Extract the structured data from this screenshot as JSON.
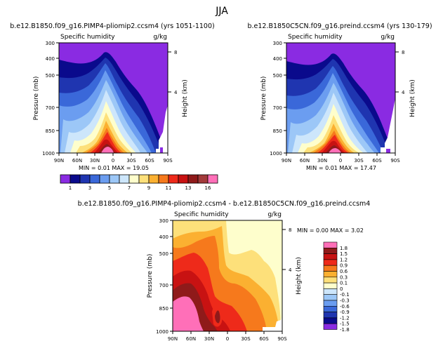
{
  "page_title": "JJA",
  "chart_data": [
    {
      "type": "contour",
      "title": "b.e12.B1850.f09_g16.PIMP4-pliomip2.ccsm4 (yrs 1051-1100)",
      "left_label": "Specific humidity",
      "right_label": "g/kg",
      "ylabel": "Pressure (mb)",
      "ylabel_right": "Height (km)",
      "x_ticks": [
        "90N",
        "60N",
        "30N",
        "0",
        "30S",
        "60S",
        "90S"
      ],
      "y_ticks": [
        "300",
        "400",
        "500",
        "700",
        "850",
        "1000"
      ],
      "height_ticks": [
        "8",
        "4"
      ],
      "xlim": [
        90,
        -90
      ],
      "ylim": [
        1000,
        300
      ],
      "stats_text": "MIN = 0.01 MAX = 19.05",
      "min": 0.01,
      "max": 19.05
    },
    {
      "type": "contour",
      "title": "b.e12.B1850C5CN.f09_g16.preind.ccsm4 (yrs 130-179)",
      "left_label": "Specific humidity",
      "right_label": "g/kg",
      "ylabel": "Pressure (mb)",
      "ylabel_right": "Height (km)",
      "x_ticks": [
        "90N",
        "60N",
        "30N",
        "0",
        "30S",
        "60S",
        "90S"
      ],
      "y_ticks": [
        "300",
        "400",
        "500",
        "700",
        "850",
        "1000"
      ],
      "height_ticks": [
        "8",
        "4"
      ],
      "xlim": [
        90,
        -90
      ],
      "ylim": [
        1000,
        300
      ],
      "stats_text": "MIN = 0.01 MAX = 17.47",
      "min": 0.01,
      "max": 17.47
    },
    {
      "type": "contour",
      "title": "b.e12.B1850.f09_g16.PIMP4-pliomip2.ccsm4 - b.e12.B1850C5CN.f09_g16.preind.ccsm4",
      "left_label": "Specific humidity",
      "right_label": "g/kg",
      "ylabel": "Pressure (mb)",
      "ylabel_right": "Height (km)",
      "x_ticks": [
        "90N",
        "60N",
        "30N",
        "0",
        "30S",
        "60S",
        "90S"
      ],
      "y_ticks": [
        "300",
        "400",
        "500",
        "700",
        "850",
        "1000"
      ],
      "height_ticks": [
        "8",
        "4"
      ],
      "xlim": [
        90,
        -90
      ],
      "ylim": [
        1000,
        300
      ],
      "stats_text": "MIN = 0.00 MAX = 3.02",
      "min": 0.0,
      "max": 3.02
    }
  ],
  "colorbar_main": {
    "labels": [
      "1",
      "3",
      "5",
      "7",
      "9",
      "11",
      "13",
      "16"
    ],
    "colors": [
      "#8a2be2",
      "#0a0a8c",
      "#1f35b0",
      "#3a68d9",
      "#6b9df0",
      "#9cc7f7",
      "#cde6fb",
      "#fefecc",
      "#fde07a",
      "#fbb031",
      "#f6791c",
      "#ee2a1a",
      "#c81212",
      "#8f1a1a",
      "#a23a3a",
      "#ff6fb8"
    ]
  },
  "colorbar_diff": {
    "labels": [
      "1.8",
      "1.5",
      "1.2",
      "0.9",
      "0.6",
      "0.3",
      "0.1",
      "0",
      "-0.1",
      "-0.3",
      "-0.6",
      "-0.9",
      "-1.2",
      "-1.5",
      "-1.8"
    ],
    "colors": [
      "#ff6fb8",
      "#8f1a1a",
      "#c81212",
      "#ee2a1a",
      "#f6791c",
      "#fbb031",
      "#fde07a",
      "#fefecc",
      "#cde6fb",
      "#9cc7f7",
      "#6b9df0",
      "#3a68d9",
      "#1f35b0",
      "#0a0a8c",
      "#8a2be2"
    ]
  },
  "palette": {
    "purple": "#8a2be2",
    "navy": "#0a0a8c",
    "blue1": "#1f35b0",
    "blue2": "#3a68d9",
    "blue3": "#6b9df0",
    "blue4": "#9cc7f7",
    "blue5": "#cde6fb",
    "cream": "#fefecc",
    "yellow": "#fde07a",
    "orange1": "#fbb031",
    "orange2": "#f6791c",
    "red1": "#ee2a1a",
    "red2": "#c81212",
    "maroon": "#8f1a1a",
    "pink": "#ff6fb8"
  }
}
